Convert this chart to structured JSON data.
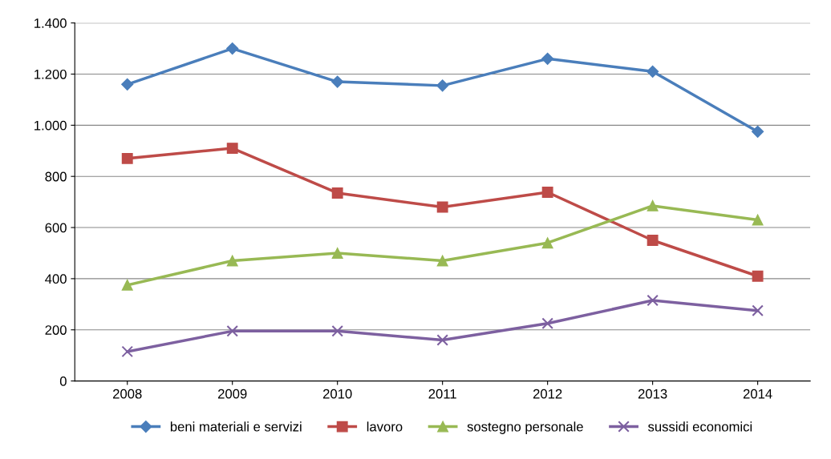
{
  "chart_data": {
    "type": "line",
    "categories": [
      "2008",
      "2009",
      "2010",
      "2011",
      "2012",
      "2013",
      "2014"
    ],
    "series": [
      {
        "name": "beni materiali e servizi",
        "color": "#4a7ebb",
        "marker": "diamond",
        "values": [
          1160,
          1300,
          1170,
          1155,
          1260,
          1210,
          975
        ]
      },
      {
        "name": "lavoro",
        "color": "#be4b48",
        "marker": "square",
        "values": [
          870,
          910,
          735,
          680,
          738,
          550,
          410
        ]
      },
      {
        "name": "sostegno personale",
        "color": "#98b954",
        "marker": "triangle",
        "values": [
          375,
          470,
          500,
          470,
          540,
          685,
          630
        ]
      },
      {
        "name": "sussidi economici",
        "color": "#7d60a0",
        "marker": "cross",
        "values": [
          115,
          195,
          195,
          160,
          225,
          315,
          275
        ]
      }
    ],
    "ylim": [
      0,
      1400
    ],
    "yticks": [
      0,
      200,
      400,
      600,
      800,
      {
        "value": 1000,
        "label": "1.000"
      },
      {
        "value": 1200,
        "label": "1.200"
      },
      {
        "value": 1400,
        "label": "1.400"
      }
    ],
    "grid": "y",
    "legend": "bottom",
    "line_style": "solid"
  }
}
